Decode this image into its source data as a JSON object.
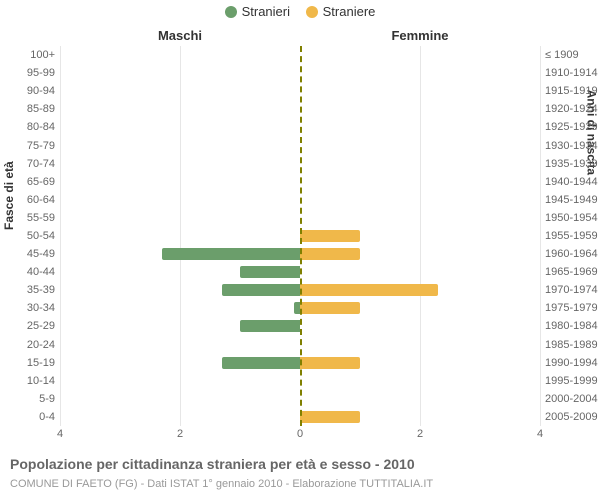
{
  "legend": {
    "male": {
      "label": "Stranieri",
      "color": "#6b9e6b"
    },
    "female": {
      "label": "Straniere",
      "color": "#f0b84a"
    }
  },
  "panels": {
    "left_title": "Maschi",
    "right_title": "Femmine"
  },
  "axis_titles": {
    "left": "Fasce di età",
    "right": "Anni di nascita"
  },
  "x_axis": {
    "max": 4,
    "ticks_left": [
      4,
      2,
      0
    ],
    "ticks_right": [
      0,
      2,
      4
    ]
  },
  "rows": [
    {
      "age": "100+",
      "year": "≤ 1909",
      "m": 0,
      "f": 0
    },
    {
      "age": "95-99",
      "year": "1910-1914",
      "m": 0,
      "f": 0
    },
    {
      "age": "90-94",
      "year": "1915-1919",
      "m": 0,
      "f": 0
    },
    {
      "age": "85-89",
      "year": "1920-1924",
      "m": 0,
      "f": 0
    },
    {
      "age": "80-84",
      "year": "1925-1929",
      "m": 0,
      "f": 0
    },
    {
      "age": "75-79",
      "year": "1930-1934",
      "m": 0,
      "f": 0
    },
    {
      "age": "70-74",
      "year": "1935-1939",
      "m": 0,
      "f": 0
    },
    {
      "age": "65-69",
      "year": "1940-1944",
      "m": 0,
      "f": 0
    },
    {
      "age": "60-64",
      "year": "1945-1949",
      "m": 0,
      "f": 0
    },
    {
      "age": "55-59",
      "year": "1950-1954",
      "m": 0,
      "f": 0
    },
    {
      "age": "50-54",
      "year": "1955-1959",
      "m": 0,
      "f": 1
    },
    {
      "age": "45-49",
      "year": "1960-1964",
      "m": 2.3,
      "f": 1
    },
    {
      "age": "40-44",
      "year": "1965-1969",
      "m": 1,
      "f": 0
    },
    {
      "age": "35-39",
      "year": "1970-1974",
      "m": 1.3,
      "f": 2.3
    },
    {
      "age": "30-34",
      "year": "1975-1979",
      "m": 0.1,
      "f": 1
    },
    {
      "age": "25-29",
      "year": "1980-1984",
      "m": 1,
      "f": 0
    },
    {
      "age": "20-24",
      "year": "1985-1989",
      "m": 0,
      "f": 0
    },
    {
      "age": "15-19",
      "year": "1990-1994",
      "m": 1.3,
      "f": 1
    },
    {
      "age": "10-14",
      "year": "1995-1999",
      "m": 0,
      "f": 0
    },
    {
      "age": "5-9",
      "year": "2000-2004",
      "m": 0,
      "f": 0
    },
    {
      "age": "0-4",
      "year": "2005-2009",
      "m": 0,
      "f": 1
    }
  ],
  "footer": {
    "title": "Popolazione per cittadinanza straniera per età e sesso - 2010",
    "subtitle": "COMUNE DI FAETO (FG) - Dati ISTAT 1° gennaio 2010 - Elaborazione TUTTITALIA.IT"
  },
  "colors": {
    "grid": "#e6e6e6",
    "center_line": "#808000",
    "tick_text": "#666666",
    "background": "#ffffff"
  }
}
